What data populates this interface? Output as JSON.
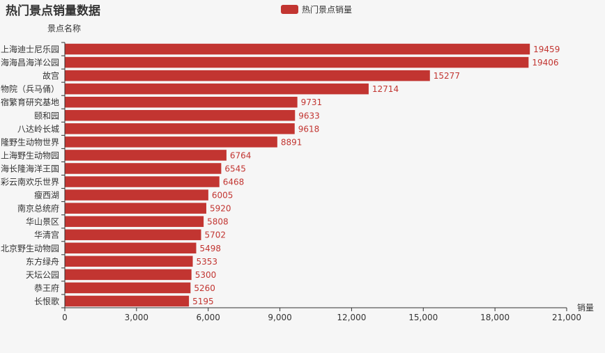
{
  "colors": {
    "bar": "#c23531",
    "axis": "#333333",
    "background": "#f6f6f6"
  },
  "chart_data": {
    "type": "bar",
    "orientation": "horizontal",
    "title": "热门景点销量数据",
    "xlabel": "销量",
    "ylabel": "景点名称",
    "legend": [
      "热门景点销量"
    ],
    "legend_position": "top-center",
    "xlim": [
      0,
      21000
    ],
    "xticks": [
      "0",
      "3,000",
      "6,000",
      "9,000",
      "12,000",
      "15,000",
      "18,000",
      "21,000"
    ],
    "grid": false,
    "categories": [
      "上海迪士尼乐园",
      "海海昌海洋公园",
      "故宫",
      "物院（兵马俑）",
      "宿繁育研究基地",
      "颐和园",
      "八达岭长城",
      "隆野生动物世界",
      "上海野生动物园",
      "海长隆海洋王国",
      "彩云南欢乐世界",
      "瘦西湖",
      "南京总统府",
      "华山景区",
      "华清宫",
      "北京野生动物园",
      "东方绿舟",
      "天坛公园",
      "恭王府",
      "长恨歌"
    ],
    "series": [
      {
        "name": "热门景点销量",
        "values": [
          19459,
          19406,
          15277,
          12714,
          9731,
          9633,
          9618,
          8891,
          6764,
          6545,
          6468,
          6005,
          5920,
          5808,
          5702,
          5498,
          5353,
          5300,
          5260,
          5195
        ]
      }
    ]
  }
}
